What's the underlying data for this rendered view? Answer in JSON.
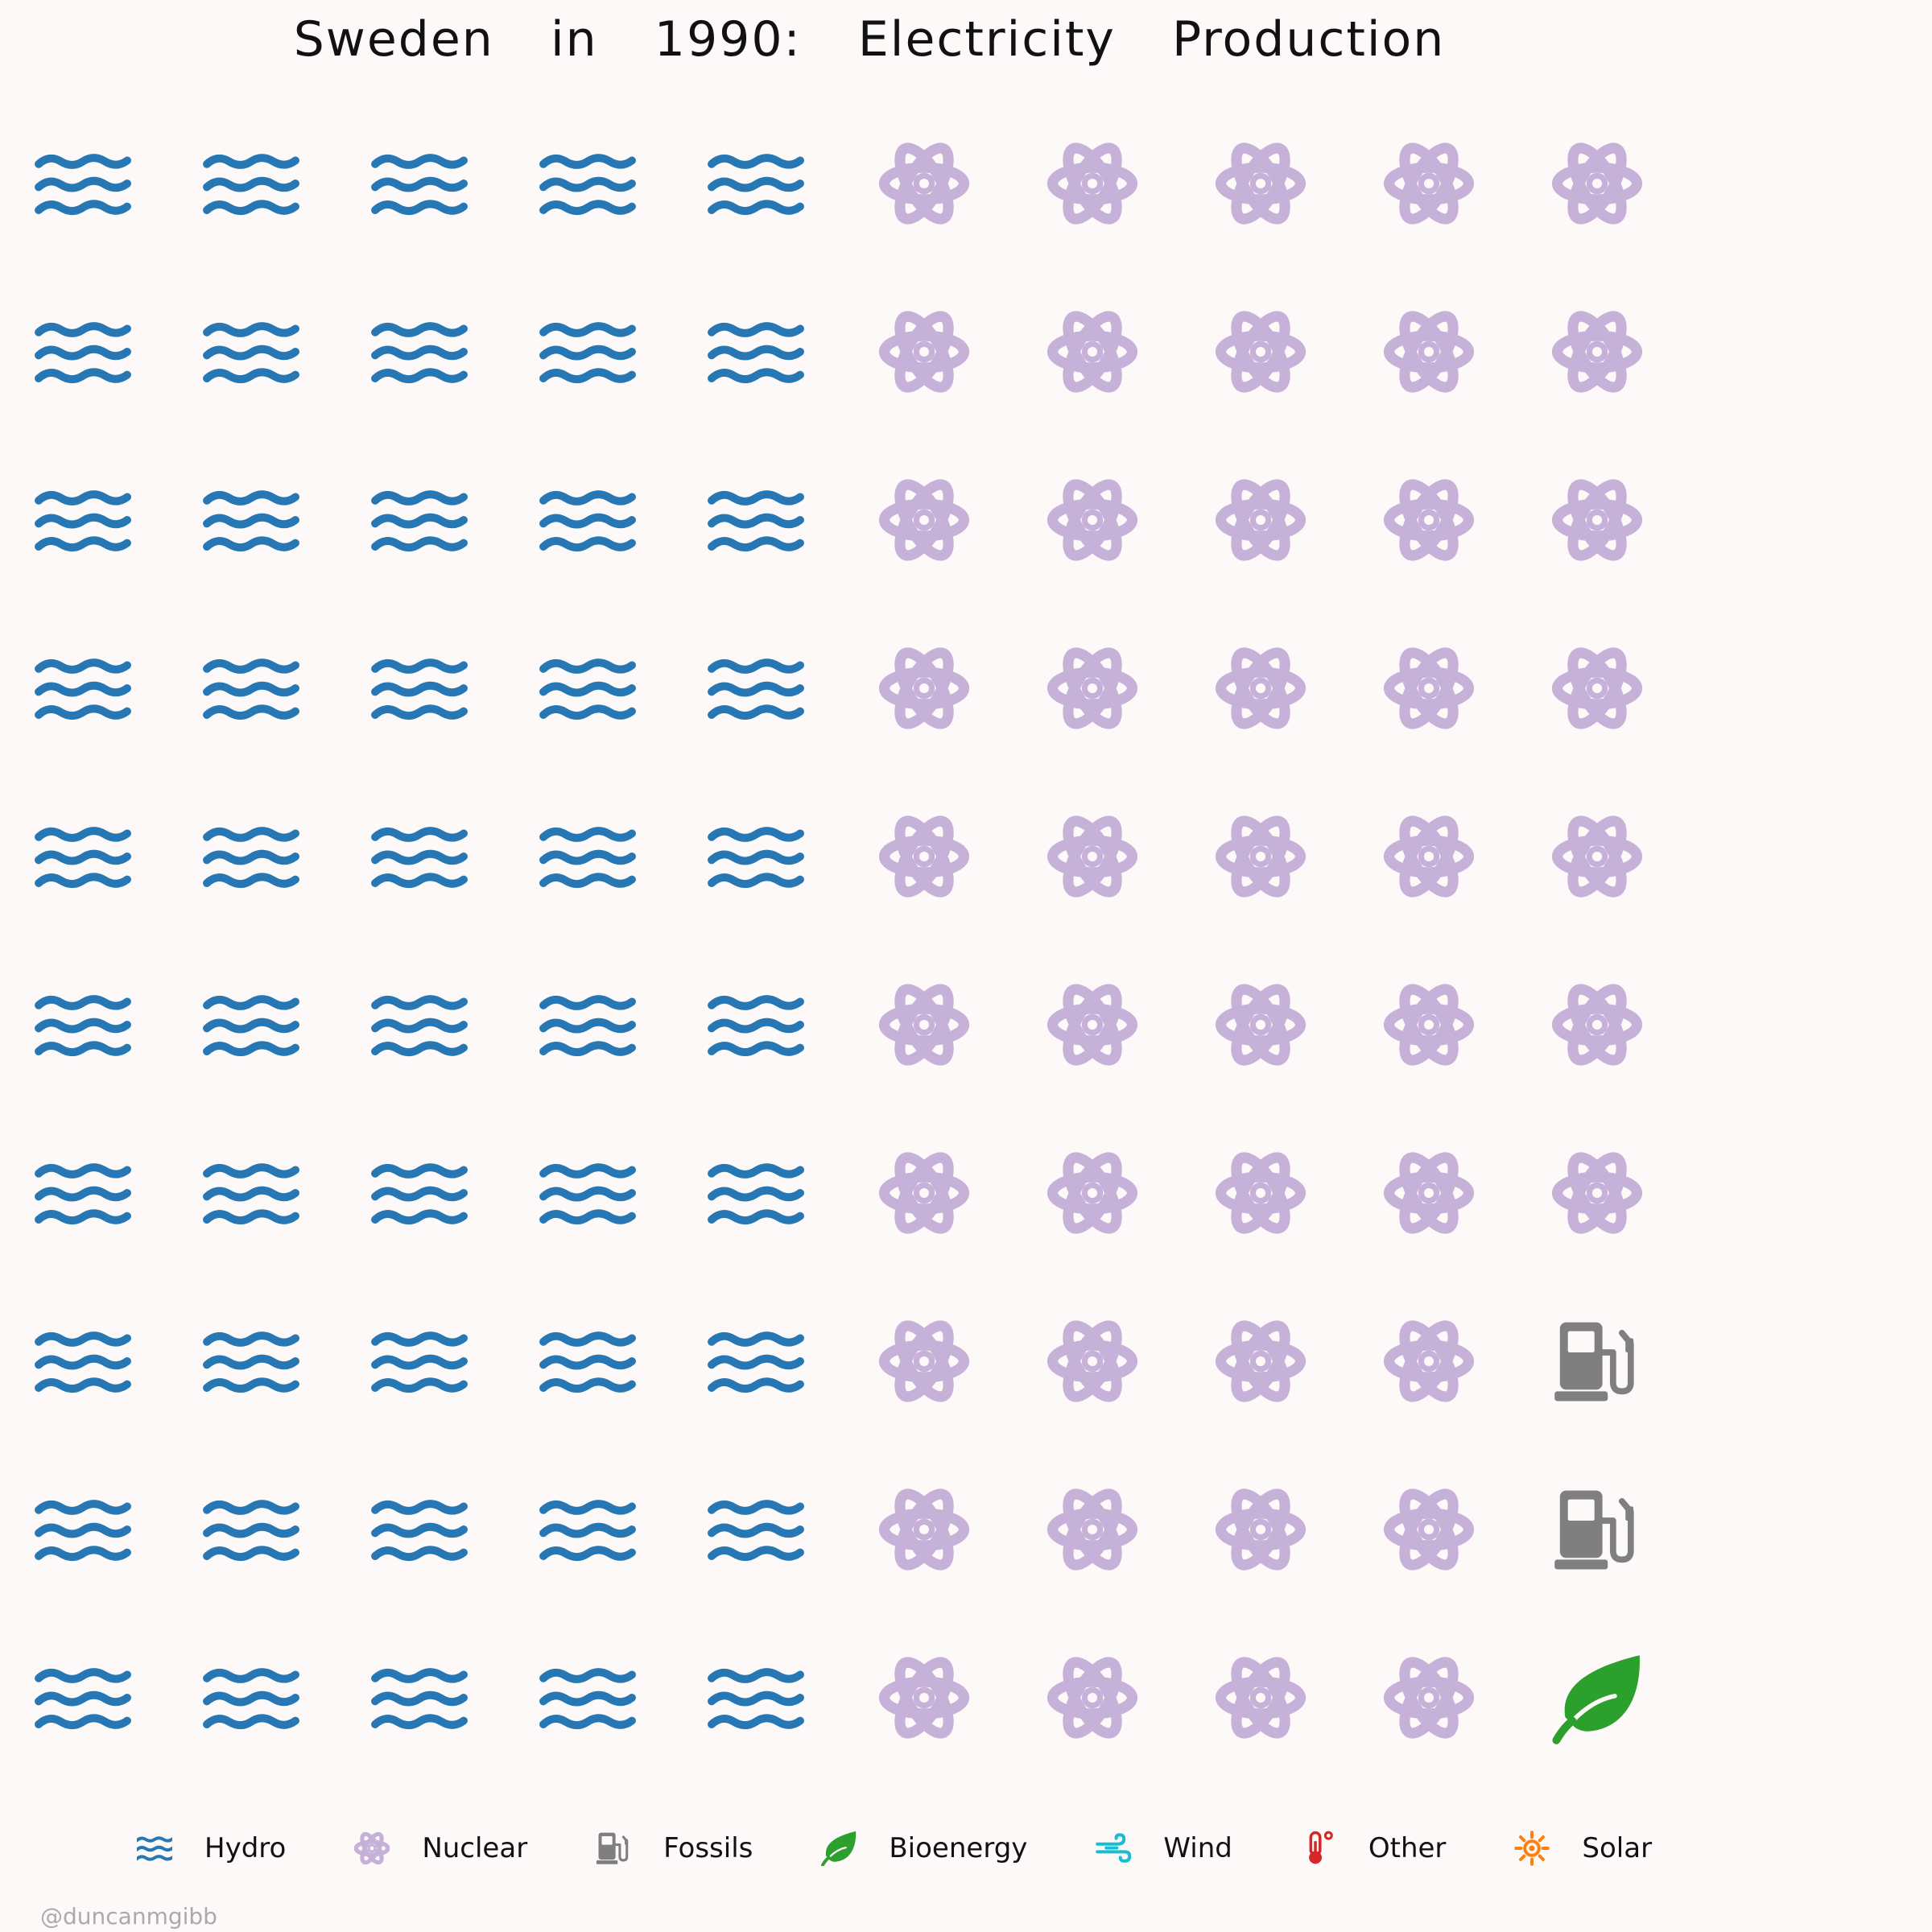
{
  "chart_data": {
    "type": "waffle",
    "title": "Sweden  in  1990:  Electricity  Production",
    "grid": {
      "rows": 10,
      "columns": 10
    },
    "categories": [
      {
        "name": "Hydro",
        "icon": "water-waves-icon",
        "color": "#2677b4",
        "units": 50
      },
      {
        "name": "Nuclear",
        "icon": "atom-icon",
        "color": "#c6b1d8",
        "units": 47
      },
      {
        "name": "Fossils",
        "icon": "gas-pump-icon",
        "color": "#7f7f7f",
        "units": 2
      },
      {
        "name": "Bioenergy",
        "icon": "leaf-icon",
        "color": "#2ca02c",
        "units": 1
      },
      {
        "name": "Wind",
        "icon": "wind-icon",
        "color": "#17becf",
        "units": 0
      },
      {
        "name": "Other",
        "icon": "thermometer-icon",
        "color": "#d62728",
        "units": 0
      },
      {
        "name": "Solar",
        "icon": "sun-icon",
        "color": "#ff7f0e",
        "units": 0
      }
    ],
    "fill_order": "column-major, top-to-bottom",
    "legend_position": "bottom"
  },
  "credit": "@duncanmgibb"
}
